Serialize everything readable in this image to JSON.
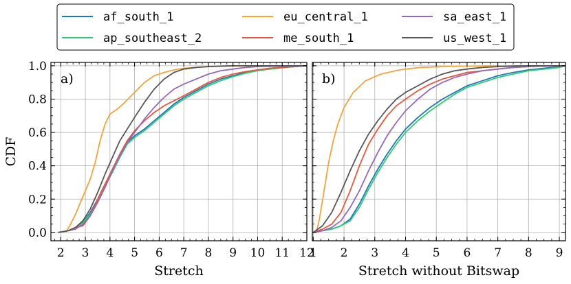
{
  "chart_data": [
    {
      "panel": "a)",
      "type": "line",
      "title": "",
      "xlabel": "Stretch",
      "ylabel": "CDF",
      "xlim": [
        1.6,
        12
      ],
      "ylim": [
        -0.05,
        1.02
      ],
      "xticks": [
        2,
        3,
        4,
        5,
        6,
        7,
        8,
        9,
        10,
        11,
        12
      ],
      "yticks": [
        0.0,
        0.2,
        0.4,
        0.6,
        0.8,
        1.0
      ],
      "grid": true,
      "series": [
        {
          "name": "af_south_1",
          "color": "#1f77b4",
          "x": [
            1.9,
            2.3,
            2.6,
            2.9,
            3.2,
            3.5,
            3.8,
            4.1,
            4.4,
            4.7,
            5.0,
            5.4,
            5.8,
            6.2,
            6.6,
            7.0,
            7.5,
            8.0,
            8.5,
            9.0,
            9.5,
            10.0,
            10.5,
            11.0,
            11.5,
            12.0
          ],
          "y": [
            0.0,
            0.01,
            0.03,
            0.06,
            0.12,
            0.2,
            0.29,
            0.37,
            0.46,
            0.54,
            0.58,
            0.62,
            0.67,
            0.72,
            0.77,
            0.81,
            0.85,
            0.89,
            0.92,
            0.94,
            0.96,
            0.975,
            0.985,
            0.99,
            0.995,
            1.0
          ]
        },
        {
          "name": "ap_southeast_2",
          "color": "#2ecc71",
          "x": [
            1.9,
            2.3,
            2.6,
            2.9,
            3.2,
            3.5,
            3.8,
            4.1,
            4.4,
            4.7,
            5.0,
            5.4,
            5.8,
            6.2,
            6.6,
            7.0,
            7.5,
            8.0,
            8.5,
            9.0,
            9.5,
            10.0,
            10.5,
            11.0,
            11.5,
            12.0
          ],
          "y": [
            0.0,
            0.01,
            0.03,
            0.06,
            0.11,
            0.19,
            0.28,
            0.36,
            0.45,
            0.53,
            0.57,
            0.61,
            0.66,
            0.71,
            0.76,
            0.8,
            0.84,
            0.88,
            0.91,
            0.935,
            0.955,
            0.97,
            0.98,
            0.988,
            0.995,
            1.0
          ]
        },
        {
          "name": "eu_central_1",
          "color": "#f5a33b",
          "x": [
            2.2,
            2.4,
            2.6,
            2.8,
            3.0,
            3.2,
            3.4,
            3.6,
            3.8,
            4.0,
            4.3,
            4.6,
            5.0,
            5.4,
            5.8,
            6.2,
            6.6,
            7.0,
            7.5,
            8.0,
            9.0,
            10.0,
            12.0
          ],
          "y": [
            0.0,
            0.05,
            0.11,
            0.18,
            0.25,
            0.32,
            0.42,
            0.55,
            0.65,
            0.71,
            0.74,
            0.78,
            0.84,
            0.9,
            0.94,
            0.96,
            0.975,
            0.985,
            0.99,
            0.995,
            0.998,
            1.0,
            1.0
          ]
        },
        {
          "name": "me_south_1",
          "color": "#e8553a",
          "x": [
            1.9,
            2.3,
            2.6,
            2.9,
            3.2,
            3.5,
            3.8,
            4.1,
            4.4,
            4.7,
            5.0,
            5.4,
            5.8,
            6.2,
            6.6,
            7.0,
            7.5,
            8.0,
            8.5,
            9.0,
            9.5,
            10.0,
            10.5,
            11.0,
            11.5,
            12.0
          ],
          "y": [
            0.0,
            0.01,
            0.03,
            0.04,
            0.1,
            0.2,
            0.29,
            0.38,
            0.47,
            0.55,
            0.61,
            0.67,
            0.72,
            0.76,
            0.79,
            0.82,
            0.86,
            0.9,
            0.93,
            0.95,
            0.965,
            0.975,
            0.985,
            0.99,
            0.995,
            1.0
          ]
        },
        {
          "name": "sa_east_1",
          "color": "#9467bd",
          "x": [
            1.9,
            2.3,
            2.6,
            2.9,
            3.2,
            3.5,
            3.8,
            4.1,
            4.4,
            4.7,
            5.0,
            5.4,
            5.8,
            6.2,
            6.6,
            7.0,
            7.5,
            8.0,
            8.5,
            9.0,
            9.5,
            10.0,
            11.0,
            12.0
          ],
          "y": [
            0.0,
            0.01,
            0.02,
            0.05,
            0.1,
            0.18,
            0.27,
            0.37,
            0.46,
            0.54,
            0.6,
            0.68,
            0.75,
            0.81,
            0.86,
            0.89,
            0.92,
            0.95,
            0.97,
            0.98,
            0.99,
            0.995,
            0.998,
            1.0
          ]
        },
        {
          "name": "us_west_1",
          "color": "#555555",
          "x": [
            1.9,
            2.3,
            2.6,
            2.9,
            3.2,
            3.5,
            3.8,
            4.1,
            4.4,
            4.7,
            5.0,
            5.4,
            5.8,
            6.2,
            6.6,
            7.0,
            7.5,
            8.0,
            8.5,
            9.0,
            10.0,
            11.0,
            12.0
          ],
          "y": [
            0.0,
            0.01,
            0.03,
            0.07,
            0.14,
            0.24,
            0.35,
            0.45,
            0.55,
            0.62,
            0.69,
            0.78,
            0.86,
            0.92,
            0.96,
            0.98,
            0.99,
            0.995,
            0.998,
            1.0,
            1.0,
            1.0,
            1.0
          ]
        }
      ]
    },
    {
      "panel": "b)",
      "type": "line",
      "title": "",
      "xlabel": "Stretch without Bitswap",
      "ylabel": "",
      "xlim": [
        0.97,
        9.2
      ],
      "ylim": [
        -0.05,
        1.02
      ],
      "xticks": [
        1,
        2,
        3,
        4,
        5,
        6,
        7,
        8,
        9
      ],
      "yticks": [
        0.0,
        0.2,
        0.4,
        0.6,
        0.8,
        1.0
      ],
      "grid": true,
      "series": [
        {
          "name": "af_south_1",
          "color": "#1f77b4",
          "x": [
            1.0,
            1.3,
            1.6,
            1.9,
            2.2,
            2.5,
            2.8,
            3.1,
            3.4,
            3.7,
            4.0,
            4.4,
            4.8,
            5.2,
            5.6,
            6.0,
            6.5,
            7.0,
            7.5,
            8.0,
            8.5,
            9.0,
            9.2
          ],
          "y": [
            0.0,
            0.01,
            0.02,
            0.04,
            0.08,
            0.17,
            0.28,
            0.38,
            0.47,
            0.55,
            0.62,
            0.69,
            0.75,
            0.8,
            0.84,
            0.88,
            0.91,
            0.94,
            0.96,
            0.975,
            0.985,
            0.995,
            1.0
          ]
        },
        {
          "name": "ap_southeast_2",
          "color": "#2ecc71",
          "x": [
            1.0,
            1.3,
            1.6,
            1.9,
            2.2,
            2.5,
            2.8,
            3.1,
            3.4,
            3.7,
            4.0,
            4.4,
            4.8,
            5.2,
            5.6,
            6.0,
            6.5,
            7.0,
            7.5,
            8.0,
            8.5,
            9.0,
            9.2
          ],
          "y": [
            0.0,
            0.01,
            0.02,
            0.04,
            0.07,
            0.15,
            0.26,
            0.36,
            0.45,
            0.53,
            0.6,
            0.67,
            0.73,
            0.78,
            0.83,
            0.87,
            0.9,
            0.93,
            0.95,
            0.97,
            0.98,
            0.99,
            1.0
          ]
        },
        {
          "name": "eu_central_1",
          "color": "#f5a33b",
          "x": [
            1.1,
            1.2,
            1.35,
            1.5,
            1.65,
            1.8,
            2.0,
            2.3,
            2.7,
            3.2,
            3.8,
            4.5,
            5.5,
            7.0,
            9.2
          ],
          "y": [
            0.0,
            0.08,
            0.25,
            0.42,
            0.55,
            0.65,
            0.75,
            0.84,
            0.91,
            0.95,
            0.975,
            0.99,
            0.997,
            1.0,
            1.0
          ]
        },
        {
          "name": "me_south_1",
          "color": "#e8553a",
          "x": [
            1.0,
            1.3,
            1.6,
            1.9,
            2.2,
            2.5,
            2.8,
            3.1,
            3.4,
            3.7,
            4.0,
            4.4,
            4.8,
            5.2,
            5.6,
            6.0,
            6.5,
            7.0,
            7.5,
            8.0,
            8.5,
            9.2
          ],
          "y": [
            0.0,
            0.02,
            0.05,
            0.12,
            0.25,
            0.4,
            0.53,
            0.62,
            0.7,
            0.76,
            0.8,
            0.85,
            0.89,
            0.92,
            0.94,
            0.96,
            0.97,
            0.98,
            0.99,
            0.995,
            0.998,
            1.0
          ]
        },
        {
          "name": "sa_east_1",
          "color": "#9467bd",
          "x": [
            1.0,
            1.3,
            1.6,
            1.9,
            2.2,
            2.5,
            2.8,
            3.1,
            3.4,
            3.7,
            4.0,
            4.4,
            4.8,
            5.2,
            5.6,
            6.0,
            6.5,
            7.0,
            7.5,
            8.0,
            8.5,
            9.2
          ],
          "y": [
            0.0,
            0.01,
            0.03,
            0.07,
            0.15,
            0.25,
            0.37,
            0.48,
            0.58,
            0.66,
            0.73,
            0.8,
            0.86,
            0.9,
            0.93,
            0.95,
            0.97,
            0.98,
            0.99,
            0.995,
            0.998,
            1.0
          ]
        },
        {
          "name": "us_west_1",
          "color": "#555555",
          "x": [
            1.0,
            1.3,
            1.6,
            1.9,
            2.2,
            2.5,
            2.8,
            3.1,
            3.4,
            3.7,
            4.0,
            4.4,
            4.8,
            5.2,
            5.6,
            6.0,
            6.5,
            7.0,
            7.5,
            8.0,
            9.2
          ],
          "y": [
            0.0,
            0.04,
            0.12,
            0.24,
            0.37,
            0.49,
            0.59,
            0.67,
            0.74,
            0.8,
            0.84,
            0.88,
            0.92,
            0.95,
            0.97,
            0.98,
            0.99,
            0.995,
            0.998,
            1.0,
            1.0
          ]
        }
      ]
    }
  ],
  "legend": {
    "placement": "top-center",
    "entries": [
      {
        "label": "af_south_1",
        "color": "#1f77b4"
      },
      {
        "label": "ap_southeast_2",
        "color": "#2ecc71"
      },
      {
        "label": "eu_central_1",
        "color": "#f5a33b"
      },
      {
        "label": "me_south_1",
        "color": "#e8553a"
      },
      {
        "label": "sa_east_1",
        "color": "#9467bd"
      },
      {
        "label": "us_west_1",
        "color": "#555555"
      }
    ]
  }
}
